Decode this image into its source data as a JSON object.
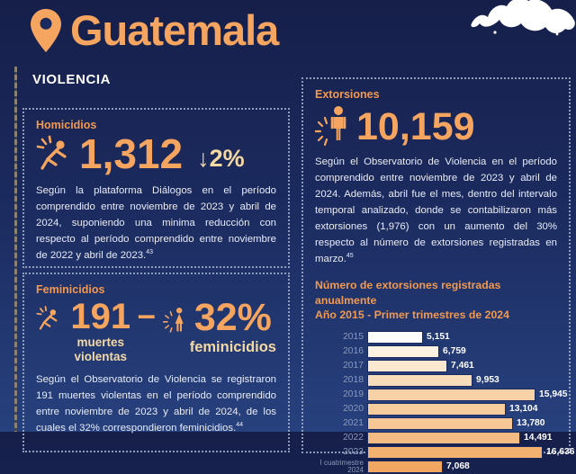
{
  "header": {
    "title": "Guatemala",
    "section_label": "VIOLENCIA"
  },
  "icons": {
    "location_pin": "map-pin",
    "homicide": "falling-person-with-burst",
    "femicide": "woman-figure-with-burst",
    "extortion": "standing-person-with-burst",
    "map_fragment": "central-america-country-outline"
  },
  "colors": {
    "background_top": "#161F4A",
    "background_bottom": "#27417E",
    "accent_orange": "#F5A55F",
    "label_orange": "#F2994F",
    "cream": "#F5D9A4",
    "body_text": "#E9ECF4",
    "year_label": "#8C98B5",
    "bar_border": "#1B2A5E",
    "dotted_border": "#A6B2CD",
    "left_rule": "#8B8273",
    "white": "#FFFFFF"
  },
  "homicidios": {
    "label": "Homicidios",
    "value": "1,312",
    "change": "↓2%",
    "body": "Según la plataforma Diálogos en el período comprendido entre noviembre de 2023 y abril de 2024, suponiendo una minima reducción con respecto al período comprendido entre noviembre de 2022 y abril de 2023.",
    "footnote": "43"
  },
  "feminicidios": {
    "label": "Feminicidios",
    "value1": "191",
    "caption1": "muertes violentas",
    "dash": "–",
    "value2": "32%",
    "caption2": "feminicidios",
    "body": "Según el Observatorio de Violencia se registraron 191 muertes violentas en el período comprendido entre noviembre de 2023 y abril de 2024, de los cuales el 32% correspondieron feminicidios.",
    "footnote": "44"
  },
  "extorsiones": {
    "label": "Extorsiones",
    "value": "10,159",
    "body": "Según el Observatorio de Violencia en el período comprendido entre noviembre de 2023 y abril de 2024. Además, abril fue el mes, dentro del intervalo temporal analizado, donde se contabilizaron más extorsiones (1,976) con un aumento del 30% respecto al número de extorsiones registradas en marzo.",
    "footnote": "45"
  },
  "chart_data": {
    "type": "bar",
    "orientation": "horizontal",
    "title": "Número de extorsiones registradas anualmente",
    "subtitle": "Año 2015 - Primer trimestres de 2024",
    "categories": [
      "2015",
      "2016",
      "2017",
      "2018",
      "2019",
      "2020",
      "2021",
      "2022",
      "2023",
      "I cuatrimestre 2024"
    ],
    "values": [
      5151,
      6759,
      7461,
      9953,
      15945,
      13104,
      13780,
      14491,
      16636,
      7068
    ],
    "value_labels": [
      "5,151",
      "6,759",
      "7,461",
      "9,953",
      "15,945",
      "13,104",
      "13,780",
      "14,491",
      "16,636",
      "7,068"
    ],
    "bar_colors": [
      "#FFFFFF",
      "#FDF2E2",
      "#FBE8D0",
      "#F9DDBB",
      "#F8D2A6",
      "#F7CD9E",
      "#F6C795",
      "#F4BC82",
      "#F3B170",
      "#F1A761"
    ],
    "xlim": [
      0,
      17000
    ],
    "grid": false,
    "legend": "none",
    "value_label_position": "right-of-bar"
  }
}
